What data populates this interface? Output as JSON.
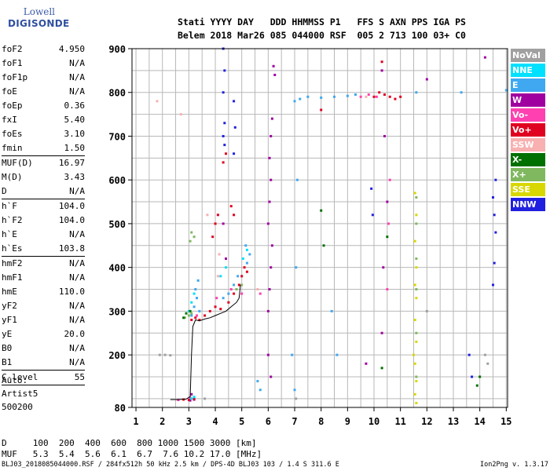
{
  "logo": {
    "line1": "Lowell",
    "line2": "DIGISONDE"
  },
  "header": {
    "line1": "Stati YYYY DAY   DDD HHMMSS P1   FFS S AXN PPS IGA PS",
    "line2": "Belem 2018 Mar26 085 044000 RSF  005 2 713 100 03+ C0"
  },
  "params": [
    {
      "label": "foF2",
      "value": "4.950"
    },
    {
      "label": "foF1",
      "value": "N/A"
    },
    {
      "label": "foF1p",
      "value": "N/A"
    },
    {
      "label": "foE",
      "value": "N/A"
    },
    {
      "label": "foEp",
      "value": "0.36"
    },
    {
      "label": "fxI",
      "value": "5.40"
    },
    {
      "label": "foEs",
      "value": "3.10"
    },
    {
      "label": "fmin",
      "value": "1.50",
      "sep": true
    },
    {
      "label": "MUF(D)",
      "value": "16.97"
    },
    {
      "label": "M(D)",
      "value": "3.43"
    },
    {
      "label": "D",
      "value": "N/A",
      "sep": true
    },
    {
      "label": "h`F",
      "value": "104.0"
    },
    {
      "label": "h`F2",
      "value": "104.0"
    },
    {
      "label": "h`E",
      "value": "N/A"
    },
    {
      "label": "h`Es",
      "value": "103.8",
      "sep": true
    },
    {
      "label": "hmF2",
      "value": "N/A"
    },
    {
      "label": "hmF1",
      "value": "N/A"
    },
    {
      "label": "hmE",
      "value": "110.0"
    },
    {
      "label": "yF2",
      "value": "N/A"
    },
    {
      "label": "yF1",
      "value": "N/A"
    },
    {
      "label": "yE",
      "value": "20.0"
    },
    {
      "label": "B0",
      "value": "N/A"
    },
    {
      "label": "B1",
      "value": "N/A",
      "sep": true
    },
    {
      "label": "C-level",
      "value": "55",
      "sep": true
    }
  ],
  "auto": {
    "line1": "Auto:",
    "line2": "Artist5",
    "line3": "500200"
  },
  "freq_table": {
    "line1": "D     100  200  400  600  800 1000 1500 3000 [km]",
    "line2": "MUF   5.3  5.4  5.6  6.1  6.7  7.6 10.2 17.0 [MHz]"
  },
  "footer": {
    "left": "BLJ03_2018085044000.RSF / 284fx512h 50 kHz 2.5 km / DPS-4D BLJ03 103 / 1.4 S 311.6 E",
    "right": "Ion2Png v. 1.3.17"
  },
  "legend": [
    {
      "label": "NoVal",
      "color": "#a0a0a0"
    },
    {
      "label": "NNE",
      "color": "#00e0ff"
    },
    {
      "label": "E",
      "color": "#40a8f0"
    },
    {
      "label": "W",
      "color": "#a000a0"
    },
    {
      "label": "Vo-",
      "color": "#ff40b0"
    },
    {
      "label": "Vo+",
      "color": "#e00020"
    },
    {
      "label": "SSW",
      "color": "#f8b0b0"
    },
    {
      "label": "X-",
      "color": "#007000"
    },
    {
      "label": "X+",
      "color": "#80b860"
    },
    {
      "label": "SSE",
      "color": "#d8d800"
    },
    {
      "label": "NNW",
      "color": "#2020e0"
    }
  ],
  "chart_data": {
    "type": "scatter",
    "title": "",
    "xlabel": "",
    "ylabel": "",
    "xlim": [
      0.85,
      15.05
    ],
    "ylim": [
      80,
      900
    ],
    "x_ticks": [
      1,
      2,
      3,
      4,
      5,
      6,
      7,
      8,
      9,
      10,
      11,
      12,
      13,
      14,
      15
    ],
    "y_ticks": [
      80,
      200,
      300,
      400,
      500,
      600,
      700,
      800,
      900
    ],
    "grid": true,
    "trace": {
      "x": [
        2.3,
        2.6,
        2.9,
        3.05,
        3.1,
        3.15,
        3.25,
        3.4,
        3.6,
        3.8,
        4.0,
        4.2,
        4.4,
        4.6,
        4.8,
        4.9,
        4.95
      ],
      "y": [
        98,
        98,
        99,
        105,
        200,
        265,
        280,
        278,
        282,
        285,
        290,
        295,
        300,
        310,
        320,
        330,
        360
      ]
    },
    "series": [
      {
        "name": "E",
        "color": "#40a8f0",
        "points": [
          [
            3.1,
            290
          ],
          [
            3.2,
            310
          ],
          [
            3.3,
            330
          ],
          [
            3.25,
            350
          ],
          [
            3.35,
            370
          ],
          [
            3.4,
            300
          ],
          [
            4.3,
            330
          ],
          [
            4.5,
            340
          ],
          [
            4.7,
            360
          ],
          [
            4.85,
            380
          ],
          [
            5.2,
            410
          ],
          [
            5.3,
            430
          ],
          [
            5.15,
            450
          ],
          [
            7.0,
            780
          ],
          [
            7.2,
            785
          ],
          [
            7.5,
            790
          ],
          [
            8.0,
            788
          ],
          [
            8.5,
            790
          ],
          [
            9.0,
            792
          ],
          [
            9.3,
            795
          ],
          [
            7.1,
            600
          ],
          [
            7.05,
            400
          ],
          [
            6.9,
            200
          ],
          [
            7.0,
            120
          ],
          [
            8.4,
            300
          ],
          [
            8.6,
            200
          ],
          [
            5.6,
            140
          ],
          [
            5.7,
            120
          ],
          [
            15.0,
            805
          ],
          [
            11.6,
            800
          ],
          [
            13.3,
            800
          ]
        ]
      },
      {
        "name": "W",
        "color": "#a000a0",
        "points": [
          [
            6.0,
            300
          ],
          [
            6.05,
            350
          ],
          [
            6.1,
            400
          ],
          [
            6.15,
            450
          ],
          [
            6.0,
            500
          ],
          [
            6.05,
            550
          ],
          [
            6.1,
            600
          ],
          [
            6.05,
            650
          ],
          [
            6.1,
            700
          ],
          [
            6.15,
            740
          ],
          [
            6.0,
            200
          ],
          [
            6.1,
            150
          ],
          [
            6.2,
            860
          ],
          [
            6.25,
            840
          ],
          [
            10.3,
            250
          ],
          [
            10.35,
            400
          ],
          [
            10.5,
            550
          ],
          [
            10.4,
            700
          ],
          [
            10.3,
            850
          ],
          [
            3.05,
            96
          ],
          [
            3.2,
            98
          ],
          [
            3.1,
            110
          ],
          [
            9.7,
            180
          ],
          [
            4.3,
            500
          ],
          [
            4.4,
            420
          ],
          [
            14.2,
            880
          ],
          [
            12.0,
            830
          ]
        ]
      },
      {
        "name": "Vo+",
        "color": "#e00020",
        "points": [
          [
            3.1,
            280
          ],
          [
            3.25,
            285
          ],
          [
            3.4,
            280
          ],
          [
            3.6,
            290
          ],
          [
            3.8,
            300
          ],
          [
            4.0,
            310
          ],
          [
            4.2,
            305
          ],
          [
            4.5,
            320
          ],
          [
            4.7,
            340
          ],
          [
            4.9,
            360
          ],
          [
            5.0,
            380
          ],
          [
            5.1,
            400
          ],
          [
            5.2,
            390
          ],
          [
            3.9,
            470
          ],
          [
            4.0,
            500
          ],
          [
            4.1,
            520
          ],
          [
            4.6,
            540
          ],
          [
            4.7,
            520
          ],
          [
            10.0,
            790
          ],
          [
            10.2,
            800
          ],
          [
            10.4,
            795
          ],
          [
            10.6,
            790
          ],
          [
            10.8,
            785
          ],
          [
            11.0,
            790
          ],
          [
            2.8,
            98
          ],
          [
            3.0,
            97
          ],
          [
            3.2,
            99
          ],
          [
            4.3,
            640
          ],
          [
            4.4,
            660
          ],
          [
            8.0,
            760
          ],
          [
            10.3,
            870
          ]
        ]
      },
      {
        "name": "Vo-",
        "color": "#ff40b0",
        "points": [
          [
            3.3,
            290
          ],
          [
            4.05,
            330
          ],
          [
            4.6,
            350
          ],
          [
            5.0,
            340
          ],
          [
            9.5,
            790
          ],
          [
            9.8,
            795
          ],
          [
            10.1,
            790
          ],
          [
            10.6,
            600
          ],
          [
            10.55,
            500
          ],
          [
            10.5,
            350
          ],
          [
            5.7,
            340
          ],
          [
            2.6,
            97
          ],
          [
            3.05,
            102
          ]
        ]
      },
      {
        "name": "NNE",
        "color": "#00e0ff",
        "points": [
          [
            3.0,
            300
          ],
          [
            3.1,
            320
          ],
          [
            3.2,
            340
          ],
          [
            4.2,
            380
          ],
          [
            4.4,
            400
          ],
          [
            5.05,
            420
          ],
          [
            5.2,
            440
          ],
          [
            3.1,
            100
          ],
          [
            3.2,
            104
          ]
        ]
      },
      {
        "name": "X+",
        "color": "#80b860",
        "points": [
          [
            2.85,
            285
          ],
          [
            3.0,
            290
          ],
          [
            3.1,
            295
          ],
          [
            3.05,
            460
          ],
          [
            3.1,
            480
          ],
          [
            3.2,
            470
          ],
          [
            4.8,
            350
          ],
          [
            5.0,
            360
          ],
          [
            11.6,
            560
          ],
          [
            11.6,
            500
          ],
          [
            11.6,
            420
          ],
          [
            11.6,
            350
          ],
          [
            11.6,
            250
          ],
          [
            11.6,
            150
          ]
        ]
      },
      {
        "name": "X-",
        "color": "#007000",
        "points": [
          [
            2.8,
            285
          ],
          [
            2.9,
            295
          ],
          [
            3.05,
            300
          ],
          [
            8.0,
            530
          ],
          [
            8.1,
            450
          ],
          [
            10.5,
            470
          ],
          [
            13.9,
            130
          ],
          [
            14.0,
            150
          ],
          [
            10.3,
            170
          ]
        ]
      },
      {
        "name": "SSE",
        "color": "#d8d800",
        "points": [
          [
            11.55,
            570
          ],
          [
            11.6,
            520
          ],
          [
            11.55,
            460
          ],
          [
            11.6,
            400
          ],
          [
            11.55,
            360
          ],
          [
            11.6,
            330
          ],
          [
            11.55,
            280
          ],
          [
            11.6,
            230
          ],
          [
            11.55,
            180
          ],
          [
            11.6,
            140
          ],
          [
            11.55,
            110
          ],
          [
            11.6,
            90
          ],
          [
            11.5,
            200
          ]
        ]
      },
      {
        "name": "NNW",
        "color": "#2020e0",
        "points": [
          [
            4.3,
            900
          ],
          [
            4.35,
            850
          ],
          [
            4.3,
            800
          ],
          [
            4.35,
            730
          ],
          [
            4.3,
            700
          ],
          [
            4.35,
            680
          ],
          [
            4.7,
            780
          ],
          [
            4.75,
            720
          ],
          [
            4.7,
            660
          ],
          [
            14.6,
            600
          ],
          [
            14.5,
            560
          ],
          [
            14.55,
            520
          ],
          [
            14.6,
            480
          ],
          [
            14.55,
            410
          ],
          [
            14.5,
            360
          ],
          [
            9.9,
            580
          ],
          [
            9.95,
            520
          ],
          [
            13.6,
            200
          ],
          [
            13.7,
            150
          ]
        ]
      },
      {
        "name": "SSW",
        "color": "#f8b0b0",
        "points": [
          [
            4.1,
            380
          ],
          [
            4.15,
            430
          ],
          [
            5.6,
            350
          ],
          [
            9.7,
            790
          ],
          [
            3.7,
            520
          ],
          [
            1.8,
            780
          ],
          [
            2.7,
            750
          ]
        ]
      },
      {
        "name": "NoVal",
        "color": "#a0a0a0",
        "points": [
          [
            2.1,
            200
          ],
          [
            1.9,
            200
          ],
          [
            2.3,
            199
          ],
          [
            14.2,
            200
          ],
          [
            14.3,
            180
          ],
          [
            3.6,
            100
          ],
          [
            7.05,
            100
          ],
          [
            12.0,
            300
          ]
        ]
      }
    ]
  }
}
